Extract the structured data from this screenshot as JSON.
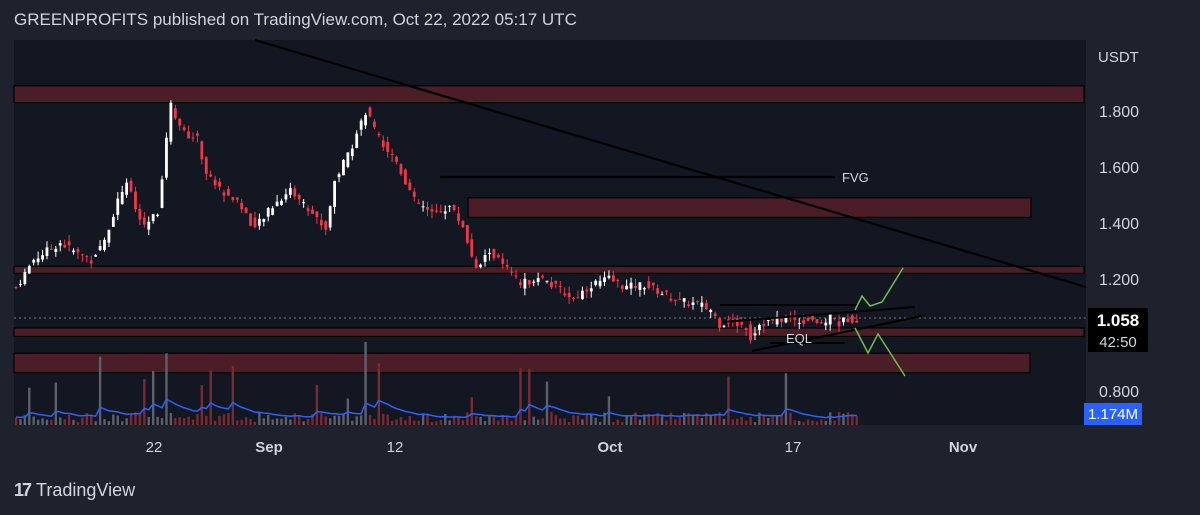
{
  "header": {
    "text": "GREENPROFITS published on TradingView.com, Oct 22, 2022 05:17 UTC"
  },
  "footer": {
    "brand": "TradingView",
    "logo_glyph": "17"
  },
  "chart_data": {
    "type": "candlestick",
    "currency": "USDT",
    "y_ticks": [
      "1.800",
      "1.600",
      "1.400",
      "1.200",
      "0.800"
    ],
    "x_ticks": [
      "22",
      "Sep",
      "12",
      "Oct",
      "17",
      "Nov"
    ],
    "last_price": "1.058",
    "countdown": "42:50",
    "volume_label": "1.174M",
    "annotations": [
      {
        "text": "FVG"
      },
      {
        "text": "EQL"
      }
    ],
    "zones": [
      {
        "price_low": 1.83,
        "price_high": 1.89
      },
      {
        "price_low": 1.42,
        "price_high": 1.49
      },
      {
        "price_low": 1.22,
        "price_high": 1.245
      },
      {
        "price_low": 0.995,
        "price_high": 1.025
      },
      {
        "price_low": 0.865,
        "price_high": 0.935
      }
    ],
    "price_path": [
      {
        "i": 0,
        "p": 1.17
      },
      {
        "i": 4,
        "p": 1.27
      },
      {
        "i": 10,
        "p": 1.33
      },
      {
        "i": 14,
        "p": 1.29
      },
      {
        "i": 17,
        "p": 1.27
      },
      {
        "i": 20,
        "p": 1.34
      },
      {
        "i": 23,
        "p": 1.48
      },
      {
        "i": 25,
        "p": 1.55
      },
      {
        "i": 27,
        "p": 1.45
      },
      {
        "i": 29,
        "p": 1.38
      },
      {
        "i": 32,
        "p": 1.44
      },
      {
        "i": 34,
        "p": 1.7
      },
      {
        "i": 35,
        "p": 1.82
      },
      {
        "i": 38,
        "p": 1.72
      },
      {
        "i": 41,
        "p": 1.7
      },
      {
        "i": 43,
        "p": 1.58
      },
      {
        "i": 46,
        "p": 1.52
      },
      {
        "i": 50,
        "p": 1.48
      },
      {
        "i": 54,
        "p": 1.38
      },
      {
        "i": 58,
        "p": 1.46
      },
      {
        "i": 62,
        "p": 1.52
      },
      {
        "i": 66,
        "p": 1.45
      },
      {
        "i": 70,
        "p": 1.38
      },
      {
        "i": 72,
        "p": 1.55
      },
      {
        "i": 76,
        "p": 1.68
      },
      {
        "i": 79,
        "p": 1.8
      },
      {
        "i": 82,
        "p": 1.7
      },
      {
        "i": 86,
        "p": 1.62
      },
      {
        "i": 90,
        "p": 1.48
      },
      {
        "i": 94,
        "p": 1.43
      },
      {
        "i": 98,
        "p": 1.46
      },
      {
        "i": 101,
        "p": 1.39
      },
      {
        "i": 104,
        "p": 1.23
      },
      {
        "i": 107,
        "p": 1.3
      },
      {
        "i": 110,
        "p": 1.25
      },
      {
        "i": 114,
        "p": 1.18
      },
      {
        "i": 118,
        "p": 1.21
      },
      {
        "i": 122,
        "p": 1.17
      },
      {
        "i": 126,
        "p": 1.13
      },
      {
        "i": 130,
        "p": 1.18
      },
      {
        "i": 134,
        "p": 1.2
      },
      {
        "i": 138,
        "p": 1.17
      },
      {
        "i": 142,
        "p": 1.18
      },
      {
        "i": 146,
        "p": 1.15
      },
      {
        "i": 150,
        "p": 1.12
      },
      {
        "i": 154,
        "p": 1.11
      },
      {
        "i": 157,
        "p": 1.09
      },
      {
        "i": 159,
        "p": 1.04
      },
      {
        "i": 161,
        "p": 1.05
      },
      {
        "i": 163,
        "p": 1.04
      },
      {
        "i": 165,
        "p": 1.03
      },
      {
        "i": 166,
        "p": 0.99
      },
      {
        "i": 168,
        "p": 1.04
      },
      {
        "i": 171,
        "p": 1.05
      },
      {
        "i": 174,
        "p": 1.06
      },
      {
        "i": 177,
        "p": 1.05
      },
      {
        "i": 180,
        "p": 1.06
      },
      {
        "i": 182,
        "p": 1.03
      },
      {
        "i": 184,
        "p": 1.07
      },
      {
        "i": 186,
        "p": 1.04
      },
      {
        "i": 188,
        "p": 1.06
      },
      {
        "i": 190,
        "p": 1.058
      }
    ]
  }
}
